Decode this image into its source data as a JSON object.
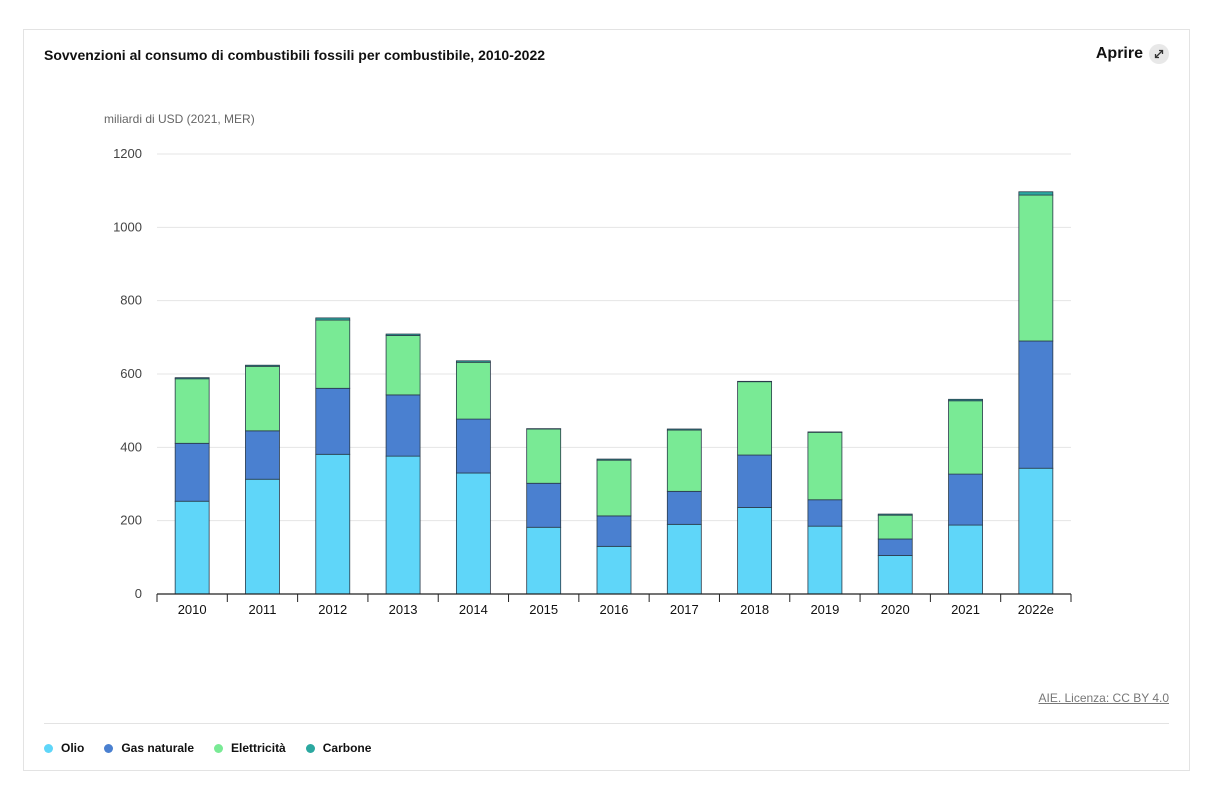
{
  "header": {
    "title": "Sovvenzioni al consumo di combustibili fossili per combustibile, 2010-2022",
    "open_label": "Aprire"
  },
  "icons": {
    "open": "expand-arrows-icon"
  },
  "source": "AIE. Licenza: CC BY 4.0",
  "colors": {
    "Olio": "#5fd6f9",
    "Gas naturale": "#4a80d0",
    "Elettricità": "#79ea95",
    "Carbone": "#2ba8a0",
    "grid": "#e5e5e5",
    "axis": "#222222"
  },
  "chart_data": {
    "type": "bar",
    "stacked": true,
    "ylabel": "miliardi di USD (2021, MER)",
    "ylim": [
      0,
      1200
    ],
    "yticks": [
      0,
      200,
      400,
      600,
      800,
      1000,
      1200
    ],
    "grid": true,
    "legend_position": "bottom-left",
    "categories": [
      "2010",
      "2011",
      "2012",
      "2013",
      "2014",
      "2015",
      "2016",
      "2017",
      "2018",
      "2019",
      "2020",
      "2021",
      "2022e"
    ],
    "series": [
      {
        "name": "Olio",
        "values": [
          253,
          313,
          381,
          376,
          330,
          182,
          130,
          190,
          236,
          185,
          105,
          188,
          343
        ]
      },
      {
        "name": "Gas naturale",
        "values": [
          158,
          132,
          180,
          167,
          147,
          120,
          83,
          90,
          143,
          72,
          45,
          139,
          347
        ]
      },
      {
        "name": "Elettricità",
        "values": [
          176,
          176,
          186,
          162,
          155,
          148,
          152,
          167,
          200,
          184,
          65,
          200,
          398
        ]
      },
      {
        "name": "Carbone",
        "values": [
          3,
          3,
          6,
          4,
          4,
          1,
          3,
          3,
          1,
          1,
          3,
          4,
          9
        ]
      }
    ]
  }
}
